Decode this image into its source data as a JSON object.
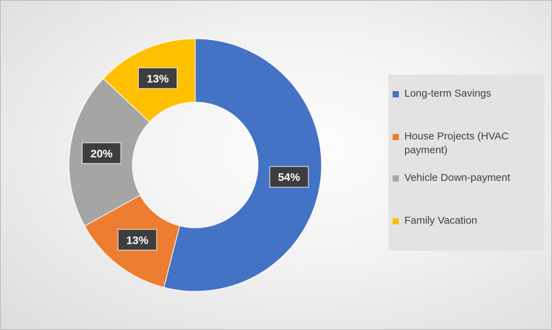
{
  "chart_data": {
    "type": "pie",
    "style": "donut",
    "legend_position": "right",
    "categories": [
      "Long-term Savings",
      "House Projects (HVAC payment)",
      "Vehicle Down-payment",
      "Family Vacation"
    ],
    "values": [
      54,
      13,
      20,
      13
    ],
    "colors": [
      "#4472C4",
      "#ED7D31",
      "#A5A5A5",
      "#FFC000"
    ],
    "data_labels": [
      "54%",
      "13%",
      "20%",
      "13%"
    ]
  }
}
